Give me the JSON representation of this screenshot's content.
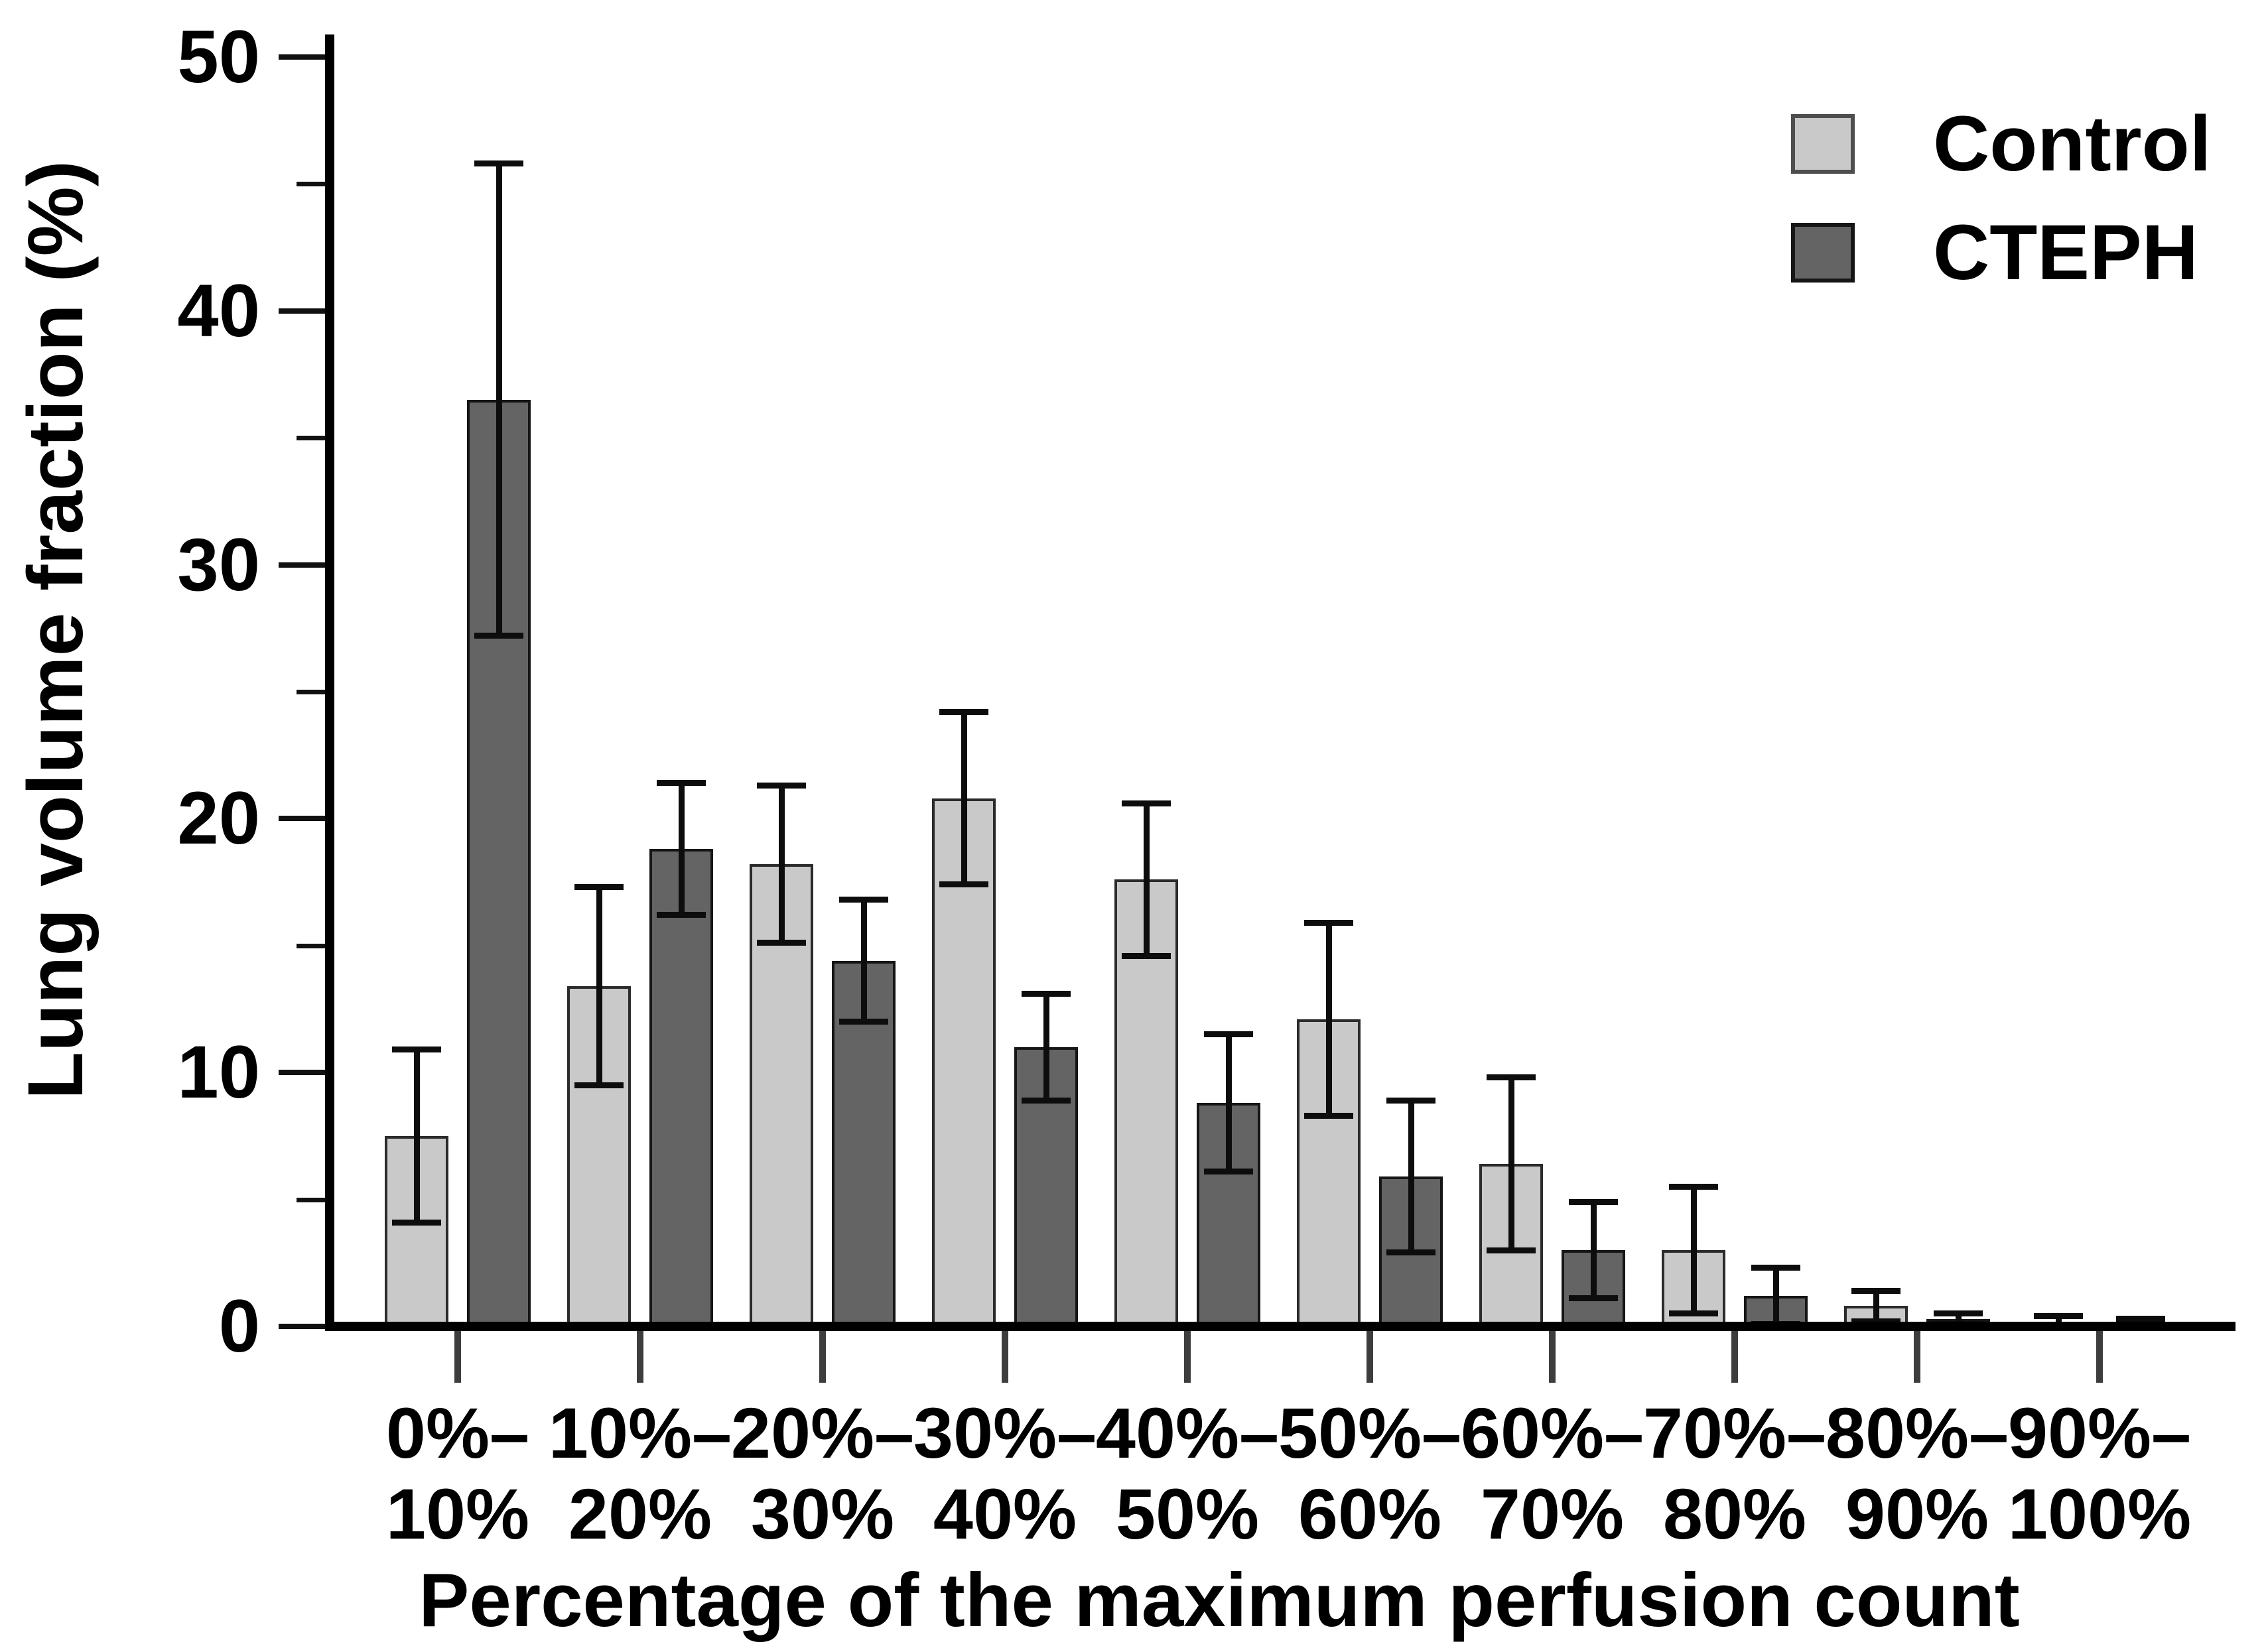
{
  "chart_data": {
    "type": "bar",
    "title": "",
    "xlabel": "Percentage of the maximum perfusion count",
    "ylabel": "Lung volume fraction (%)",
    "categories": [
      {
        "top": "0%–",
        "bottom": "10%"
      },
      {
        "top": "10%–",
        "bottom": "20%"
      },
      {
        "top": "20%–",
        "bottom": "30%"
      },
      {
        "top": "30%–",
        "bottom": "40%"
      },
      {
        "top": "40%–",
        "bottom": "50%"
      },
      {
        "top": "50%–",
        "bottom": "60%"
      },
      {
        "top": "60%–",
        "bottom": "70%"
      },
      {
        "top": "70%–",
        "bottom": "80%"
      },
      {
        "top": "80%–",
        "bottom": "90%"
      },
      {
        "top": "90%–",
        "bottom": "100%"
      }
    ],
    "series": [
      {
        "name": "Control",
        "fill_color": "#c9c9c9",
        "border_color": "#2b2b2b",
        "values": [
          7.5,
          13.4,
          18.2,
          20.8,
          17.6,
          12.1,
          6.4,
          3.0,
          0.8,
          0.15
        ],
        "errors": [
          3.4,
          3.9,
          3.1,
          3.4,
          3.0,
          3.8,
          3.4,
          2.5,
          0.6,
          0.25
        ]
      },
      {
        "name": "CTEPH",
        "fill_color": "#646464",
        "border_color": "#161616",
        "values": [
          36.5,
          18.8,
          14.4,
          11.0,
          8.8,
          5.9,
          3.0,
          1.2,
          0.3,
          0.1
        ],
        "errors": [
          9.3,
          2.6,
          2.4,
          2.1,
          2.7,
          3.0,
          1.9,
          1.1,
          0.2,
          0.2
        ]
      }
    ],
    "ylim": [
      0,
      50
    ],
    "yticks_major": [
      0,
      10,
      20,
      30,
      40,
      50
    ],
    "yticks_minor": [
      5,
      15,
      25,
      35,
      45
    ],
    "grid": false,
    "error_bars": "symmetric, capped",
    "legend_position": "top-right",
    "axis_color": "#000000",
    "background_color": "#ffffff"
  }
}
